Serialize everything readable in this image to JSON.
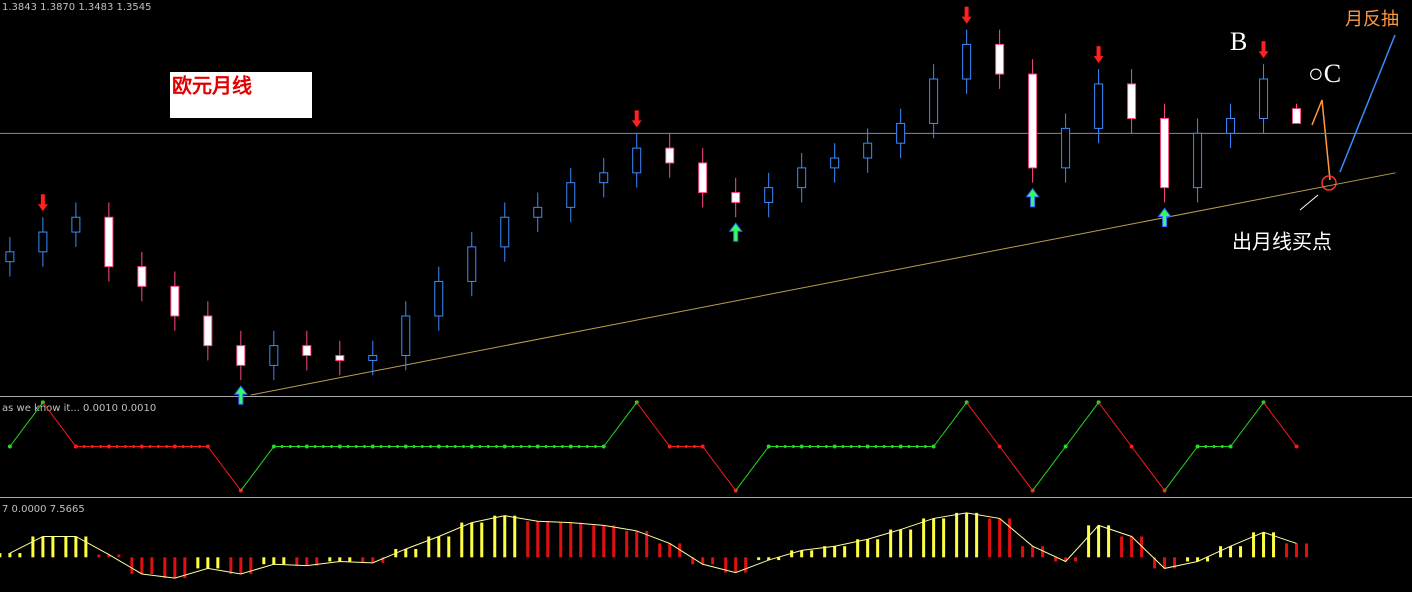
{
  "price_panel": {
    "ohlc_label": "1.3843 1.3870 1.3483 1.3545",
    "title_box": "欧元月线",
    "annotations": {
      "b": "B",
      "c": "○C",
      "rebound": "月反抽",
      "buy": "出月线买点"
    }
  },
  "chart_data": [
    {
      "type": "candlestick",
      "xlim": [
        -0.3,
        42.5
      ],
      "ylim": [
        0.8,
        1.6
      ],
      "up_color": "#3a8cff",
      "down_color": "#ff4a8a",
      "hline": 1.33,
      "trendline": {
        "x": [
          7.3,
          42
        ],
        "y": [
          0.8,
          1.25
        ]
      },
      "signals_down": [
        1,
        19,
        29,
        33,
        38
      ],
      "signals_up": [
        7,
        22,
        31,
        35
      ],
      "open": [
        1.07,
        1.09,
        1.13,
        1.16,
        1.06,
        1.02,
        0.96,
        0.9,
        0.86,
        0.9,
        0.88,
        0.87,
        0.88,
        0.96,
        1.03,
        1.1,
        1.16,
        1.18,
        1.23,
        1.25,
        1.3,
        1.27,
        1.21,
        1.19,
        1.22,
        1.26,
        1.28,
        1.31,
        1.35,
        1.44,
        1.51,
        1.45,
        1.26,
        1.34,
        1.43,
        1.36,
        1.22,
        1.33,
        1.36,
        1.38
      ],
      "high": [
        1.12,
        1.16,
        1.19,
        1.19,
        1.09,
        1.05,
        0.99,
        0.93,
        0.93,
        0.93,
        0.91,
        0.91,
        0.99,
        1.06,
        1.13,
        1.19,
        1.21,
        1.26,
        1.28,
        1.33,
        1.33,
        1.3,
        1.24,
        1.25,
        1.29,
        1.31,
        1.34,
        1.38,
        1.47,
        1.54,
        1.54,
        1.48,
        1.37,
        1.46,
        1.46,
        1.39,
        1.36,
        1.39,
        1.47,
        1.39
      ],
      "low": [
        1.04,
        1.06,
        1.1,
        1.03,
        0.99,
        0.93,
        0.87,
        0.83,
        0.83,
        0.85,
        0.84,
        0.84,
        0.85,
        0.93,
        1.0,
        1.07,
        1.13,
        1.15,
        1.2,
        1.22,
        1.24,
        1.18,
        1.16,
        1.16,
        1.19,
        1.23,
        1.25,
        1.28,
        1.32,
        1.41,
        1.42,
        1.23,
        1.23,
        1.31,
        1.33,
        1.19,
        1.19,
        1.3,
        1.33,
        1.35
      ],
      "close": [
        1.09,
        1.13,
        1.16,
        1.06,
        1.02,
        0.96,
        0.9,
        0.86,
        0.9,
        0.88,
        0.87,
        0.88,
        0.96,
        1.03,
        1.1,
        1.16,
        1.18,
        1.23,
        1.25,
        1.3,
        1.27,
        1.21,
        1.19,
        1.22,
        1.26,
        1.28,
        1.31,
        1.35,
        1.44,
        1.51,
        1.45,
        1.26,
        1.34,
        1.43,
        1.36,
        1.22,
        1.33,
        1.36,
        1.44,
        1.35
      ]
    },
    {
      "type": "step",
      "label": "as we know it... 0.0010 0.0010",
      "xlim": [
        -0.3,
        42.5
      ],
      "ylim": [
        -1.1,
        1.1
      ],
      "up_color": "#22dd22",
      "down_color": "#ff1a1a",
      "values": [
        0,
        1,
        0,
        0,
        0,
        0,
        0,
        -1,
        0,
        0,
        0,
        0,
        0,
        0,
        0,
        0,
        0,
        0,
        0,
        1,
        0,
        0,
        -1,
        0,
        0,
        0,
        0,
        0,
        0,
        1,
        0,
        -1,
        0,
        1,
        0,
        -1,
        0,
        0,
        1,
        0
      ]
    },
    {
      "type": "histogram",
      "label": "7 0.0000 7.5665",
      "xlim": [
        -0.3,
        42.5
      ],
      "ylim": [
        -2.5,
        4.2
      ],
      "up_color": "#ffff40",
      "down_color": "#e01010",
      "line_color": "#ffff99",
      "values": [
        0.3,
        1.5,
        1.5,
        0.2,
        -1.2,
        -1.5,
        -0.8,
        -1.2,
        -0.5,
        -0.6,
        -0.3,
        -0.4,
        0.6,
        1.5,
        2.5,
        3.0,
        2.6,
        2.5,
        2.3,
        1.9,
        1.0,
        -0.5,
        -1.1,
        -0.2,
        0.5,
        0.8,
        1.3,
        2.0,
        2.8,
        3.2,
        2.8,
        0.8,
        -0.3,
        2.3,
        1.5,
        -0.8,
        -0.3,
        0.8,
        1.8,
        1.0
      ]
    }
  ]
}
